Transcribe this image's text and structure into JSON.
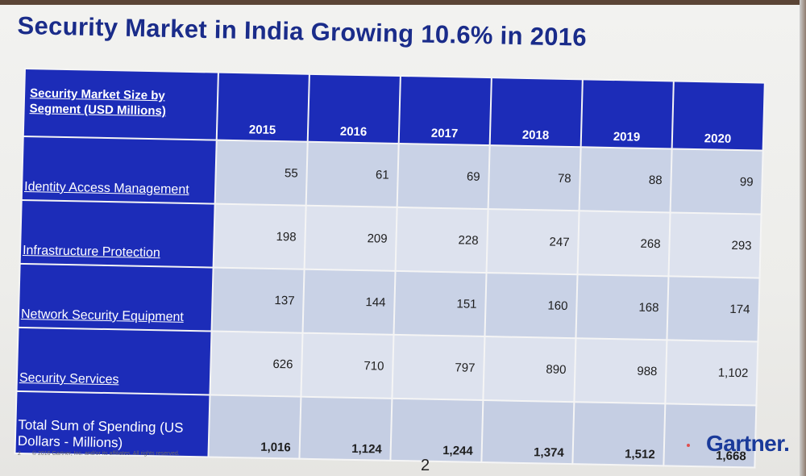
{
  "slide": {
    "title": "Security Market in India Growing 10.6% in 2016",
    "page_number": "2",
    "footer_num": "2",
    "footer_copyright": "© 2016 Gartner, Inc. and/or its affiliates. All rights reserved.",
    "logo_text": "Gartner",
    "logo_dot": ".",
    "colors": {
      "header_blue": "#1c2cb8",
      "cell_bg": "#c9d2e6",
      "title_blue": "#1a2c8a"
    }
  },
  "table": {
    "corner_label": "Security Market Size by Segment (USD Millions)",
    "years": [
      "2015",
      "2016",
      "2017",
      "2018",
      "2019",
      "2020"
    ],
    "rows": [
      {
        "label": "Identity Access Management",
        "values": [
          "55",
          "61",
          "69",
          "78",
          "88",
          "99"
        ]
      },
      {
        "label": "Infrastructure Protection",
        "values": [
          "198",
          "209",
          "228",
          "247",
          "268",
          "293"
        ]
      },
      {
        "label": "Network Security Equipment",
        "values": [
          "137",
          "144",
          "151",
          "160",
          "168",
          "174"
        ]
      },
      {
        "label": "Security Services",
        "values": [
          "626",
          "710",
          "797",
          "890",
          "988",
          "1,102"
        ]
      },
      {
        "label": "Total Sum of Spending (US Dollars - Millions)",
        "values": [
          "1,016",
          "1,124",
          "1,244",
          "1,374",
          "1,512",
          "1,668"
        ]
      }
    ]
  }
}
